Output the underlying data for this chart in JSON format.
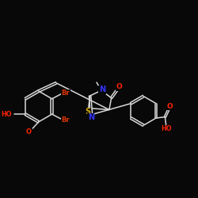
{
  "bg_color": "#080808",
  "bond_color": "#d8d8d8",
  "atom_colors": {
    "O": "#ff2200",
    "N": "#3333ff",
    "S": "#ccaa00",
    "Br": "#dd3300",
    "C": "#d8d8d8",
    "H": "#d8d8d8"
  },
  "bond_width": 1.1,
  "font_size_atom": 6.5,
  "font_size_small": 5.8
}
